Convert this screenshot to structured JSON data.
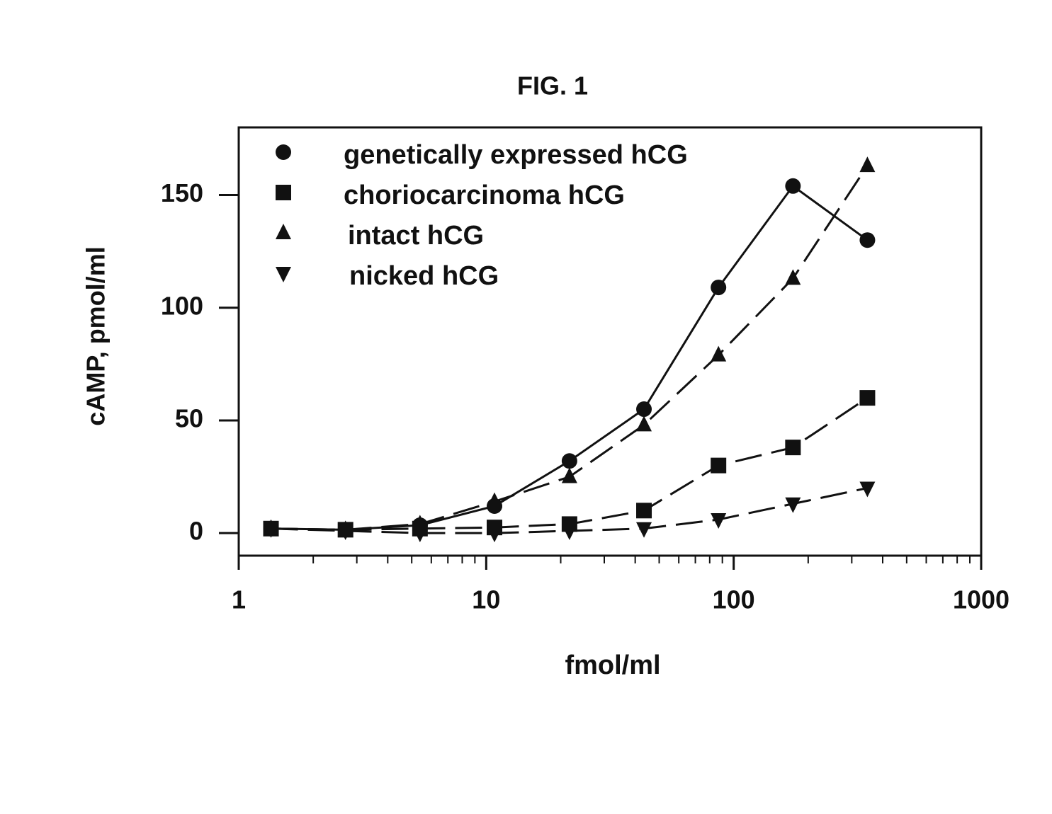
{
  "chart_data": {
    "type": "line",
    "title": "FIG. 1",
    "x_label": "fmol/ml",
    "y_label": "cAMP, pmol/ml",
    "x": [
      1.35,
      2.7,
      5.4,
      10.8,
      21.7,
      43.4,
      86.8,
      173.6,
      347
    ],
    "x_log": true,
    "xlim": [
      1,
      1000
    ],
    "xticks": [
      1,
      10,
      100,
      1000
    ],
    "xminorticks": [
      2,
      3,
      4,
      5,
      6,
      7,
      8,
      9,
      20,
      30,
      40,
      50,
      60,
      70,
      80,
      90,
      200,
      300,
      400,
      500,
      600,
      700,
      800,
      900
    ],
    "ylim": [
      -10,
      180
    ],
    "yticks": [
      0,
      50,
      100,
      150
    ],
    "legend": "upper-left",
    "series": [
      {
        "name": "genetically expressed hCG",
        "color": "#111111",
        "marker": "circle",
        "dash": "solid",
        "values": [
          2,
          1.5,
          3.5,
          12,
          32,
          55,
          109,
          154,
          130
        ]
      },
      {
        "name": "choriocarcinoma hCG",
        "color": "#111111",
        "marker": "square",
        "dash": "dashed",
        "values": [
          2,
          1.5,
          2,
          2.5,
          4,
          10,
          30,
          38,
          60
        ]
      },
      {
        "name": "intact hCG",
        "color": "#111111",
        "marker": "triangle-up",
        "dash": "dashed",
        "values": [
          2,
          1.5,
          4,
          14,
          25,
          48,
          79,
          113,
          163
        ]
      },
      {
        "name": "nicked hCG",
        "color": "#111111",
        "marker": "triangle-down",
        "dash": "dashed",
        "values": [
          2,
          1,
          0,
          0,
          1,
          2,
          6,
          13,
          20
        ]
      }
    ]
  }
}
